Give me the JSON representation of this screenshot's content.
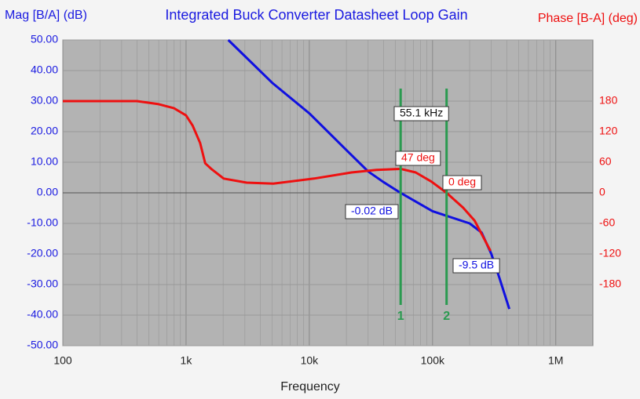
{
  "chart_data": {
    "type": "line",
    "title": "Integrated Buck Converter Datasheet Loop Gain",
    "ylabel": "Mag [B/A] (dB)",
    "y2label": "Phase [B-A] (deg)",
    "xlabel": "Frequency",
    "xscale": "log",
    "grid": true,
    "xlim": [
      100,
      2000000
    ],
    "xticks": [
      100,
      {
        "value": 1000,
        "label": "1k"
      },
      {
        "value": 10000,
        "label": "10k"
      },
      {
        "value": 100000,
        "label": "100k"
      },
      {
        "value": 1000000,
        "label": "1M"
      }
    ],
    "ylim": [
      -50,
      50
    ],
    "yticks": [
      {
        "value": 50,
        "label": "50.00"
      },
      {
        "value": 40,
        "label": "40.00"
      },
      {
        "value": 30,
        "label": "30.00"
      },
      {
        "value": 20,
        "label": "20.00"
      },
      {
        "value": 10,
        "label": "10.00"
      },
      {
        "value": 0,
        "label": "0.00"
      },
      {
        "value": -10,
        "label": "-10.00"
      },
      {
        "value": -20,
        "label": "-20.00"
      },
      {
        "value": -30,
        "label": "-30.00"
      },
      {
        "value": -40,
        "label": "-40.00"
      },
      {
        "value": -50,
        "label": "-50.00"
      }
    ],
    "y2lim": [
      -300,
      300
    ],
    "y2ticks": [
      180,
      120,
      60,
      0,
      -60,
      -120,
      -180
    ],
    "series": [
      {
        "name": "Mag [B/A]",
        "color": "#1010e0",
        "axis": "y",
        "x": [
          2200,
          5000,
          10000,
          20000,
          30000,
          40000,
          55100,
          100000,
          200000,
          250000,
          300000,
          350000,
          420000
        ],
        "values": [
          50,
          36,
          26,
          14,
          7,
          3.5,
          -0.02,
          -6,
          -10,
          -13,
          -20,
          -28,
          -38
        ]
      },
      {
        "name": "Phase [B-A]",
        "color": "#ee1010",
        "axis": "y2",
        "x": [
          100,
          400,
          600,
          800,
          1000,
          1130,
          1300,
          1430,
          1620,
          2020,
          3100,
          5100,
          10900,
          22000,
          35000,
          55100,
          73000,
          98000,
          130000,
          177000,
          220000,
          295000
        ],
        "values": [
          180,
          180,
          174,
          166,
          152,
          132,
          98,
          58,
          46,
          28,
          20,
          18,
          28,
          40,
          45,
          47,
          40,
          22,
          0,
          -29,
          -55,
          -114
        ]
      }
    ],
    "cursors": [
      {
        "label": "1",
        "x": 55100
      },
      {
        "label": "2",
        "x": 130000
      }
    ],
    "annotations": [
      "55.1 kHz",
      "47 deg",
      "0 deg",
      "-0.02 dB",
      "-9.5 dB"
    ]
  }
}
